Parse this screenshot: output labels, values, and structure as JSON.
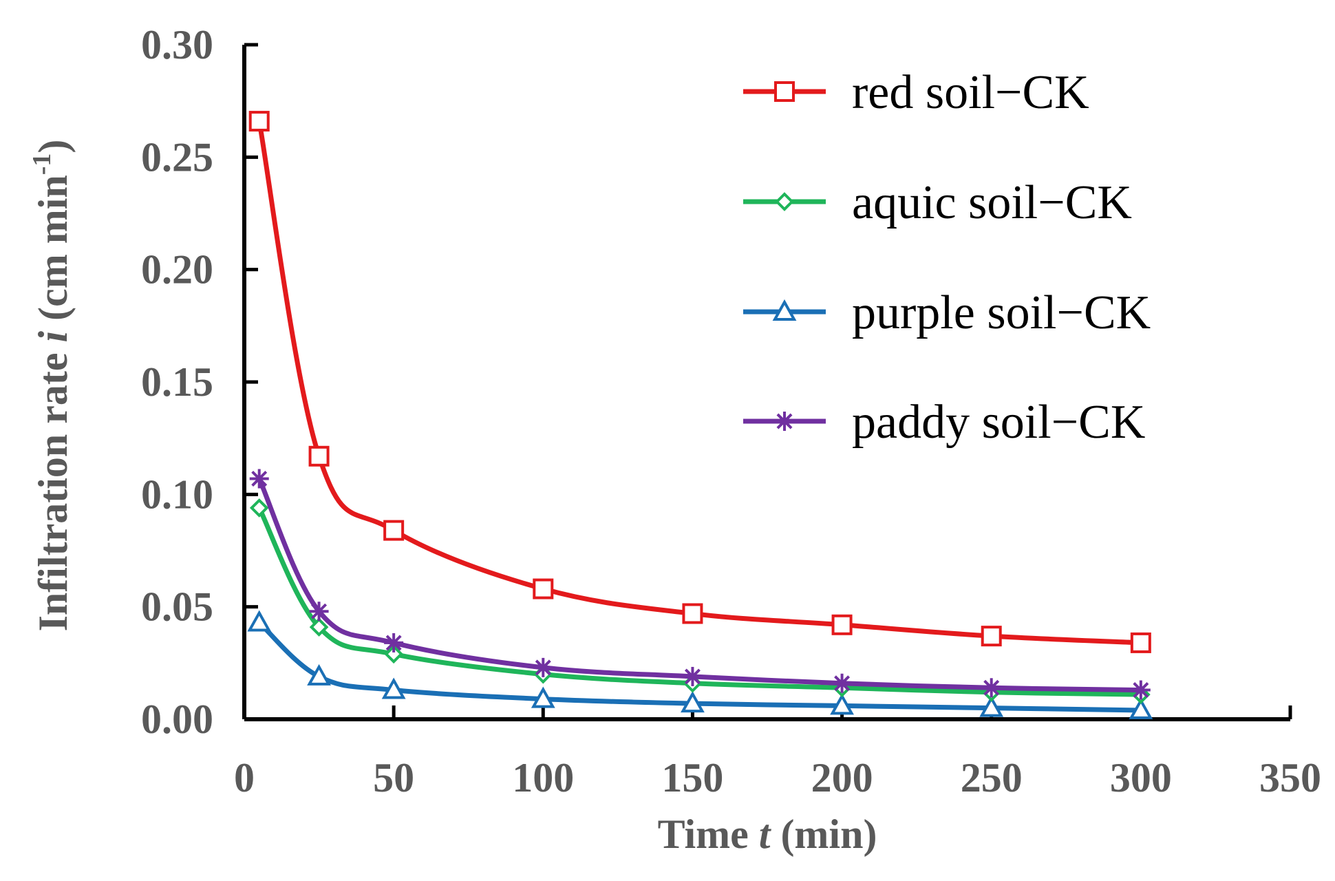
{
  "chart_data": {
    "type": "line",
    "title": "",
    "xlabel": "Time t (min)",
    "ylabel": "Infiltration rate i (cm min-1)",
    "xlabel_parts": {
      "pre": "Time ",
      "var": "t",
      "post": " (min)"
    },
    "ylabel_parts": {
      "pre": "Infiltration rate ",
      "var": "i",
      "post": " (cm min",
      "sup": "-1",
      "close": ")"
    },
    "xlim": [
      0,
      350
    ],
    "ylim": [
      0,
      0.3
    ],
    "xticks": [
      "0",
      "50",
      "100",
      "150",
      "200",
      "250",
      "300",
      "350"
    ],
    "yticks": [
      "0.00",
      "0.05",
      "0.10",
      "0.15",
      "0.20",
      "0.25",
      "0.30"
    ],
    "grid": false,
    "legend_position": "top-right",
    "x": [
      5,
      25,
      50,
      100,
      150,
      200,
      250,
      300
    ],
    "series": [
      {
        "name": "red soil−CK",
        "color": "#e31a1c",
        "marker": "square",
        "values": [
          0.266,
          0.117,
          0.084,
          0.058,
          0.047,
          0.042,
          0.037,
          0.034
        ]
      },
      {
        "name": "aquic soil−CK",
        "color": "#1fb55a",
        "marker": "diamond",
        "values": [
          0.094,
          0.041,
          0.029,
          0.02,
          0.016,
          0.014,
          0.012,
          0.011
        ]
      },
      {
        "name": "purple soil−CK",
        "color": "#1a6fb5",
        "marker": "triangle",
        "values": [
          0.043,
          0.019,
          0.013,
          0.009,
          0.007,
          0.006,
          0.005,
          0.004
        ]
      },
      {
        "name": "paddy soil−CK",
        "color": "#7030a0",
        "marker": "star",
        "values": [
          0.107,
          0.048,
          0.034,
          0.023,
          0.019,
          0.016,
          0.014,
          0.013
        ]
      }
    ]
  }
}
